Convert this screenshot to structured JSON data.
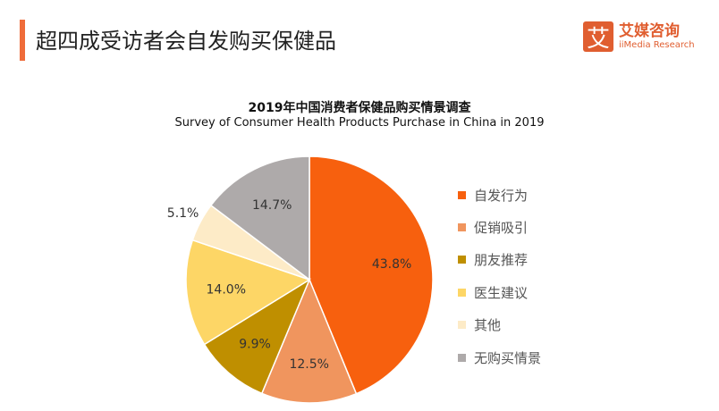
{
  "header": {
    "title": "超四成受访者会自发购买保健品"
  },
  "logo": {
    "mark": "艾",
    "name_cn": "艾媒咨询",
    "name_en": "iiMedia Research"
  },
  "chart_data": {
    "type": "pie",
    "title": "2019年中国消费者保健品购买情景调查",
    "subtitle": "Survey of Consumer Health Products Purchase in China in 2019",
    "legend_position": "right",
    "slices": [
      {
        "label": "自发行为",
        "value": 43.8,
        "display": "43.8%",
        "color": "#f7600e"
      },
      {
        "label": "促销吸引",
        "value": 12.5,
        "display": "12.5%",
        "color": "#f0955e"
      },
      {
        "label": "朋友推荐",
        "value": 9.9,
        "display": "9.9%",
        "color": "#bf8f00"
      },
      {
        "label": "医生建议",
        "value": 14.0,
        "display": "14.0%",
        "color": "#fdd666"
      },
      {
        "label": "其他",
        "value": 5.1,
        "display": "5.1%",
        "color": "#fdebc7"
      },
      {
        "label": "无购买情景",
        "value": 14.7,
        "display": "14.7%",
        "color": "#aeaaaa"
      }
    ]
  }
}
